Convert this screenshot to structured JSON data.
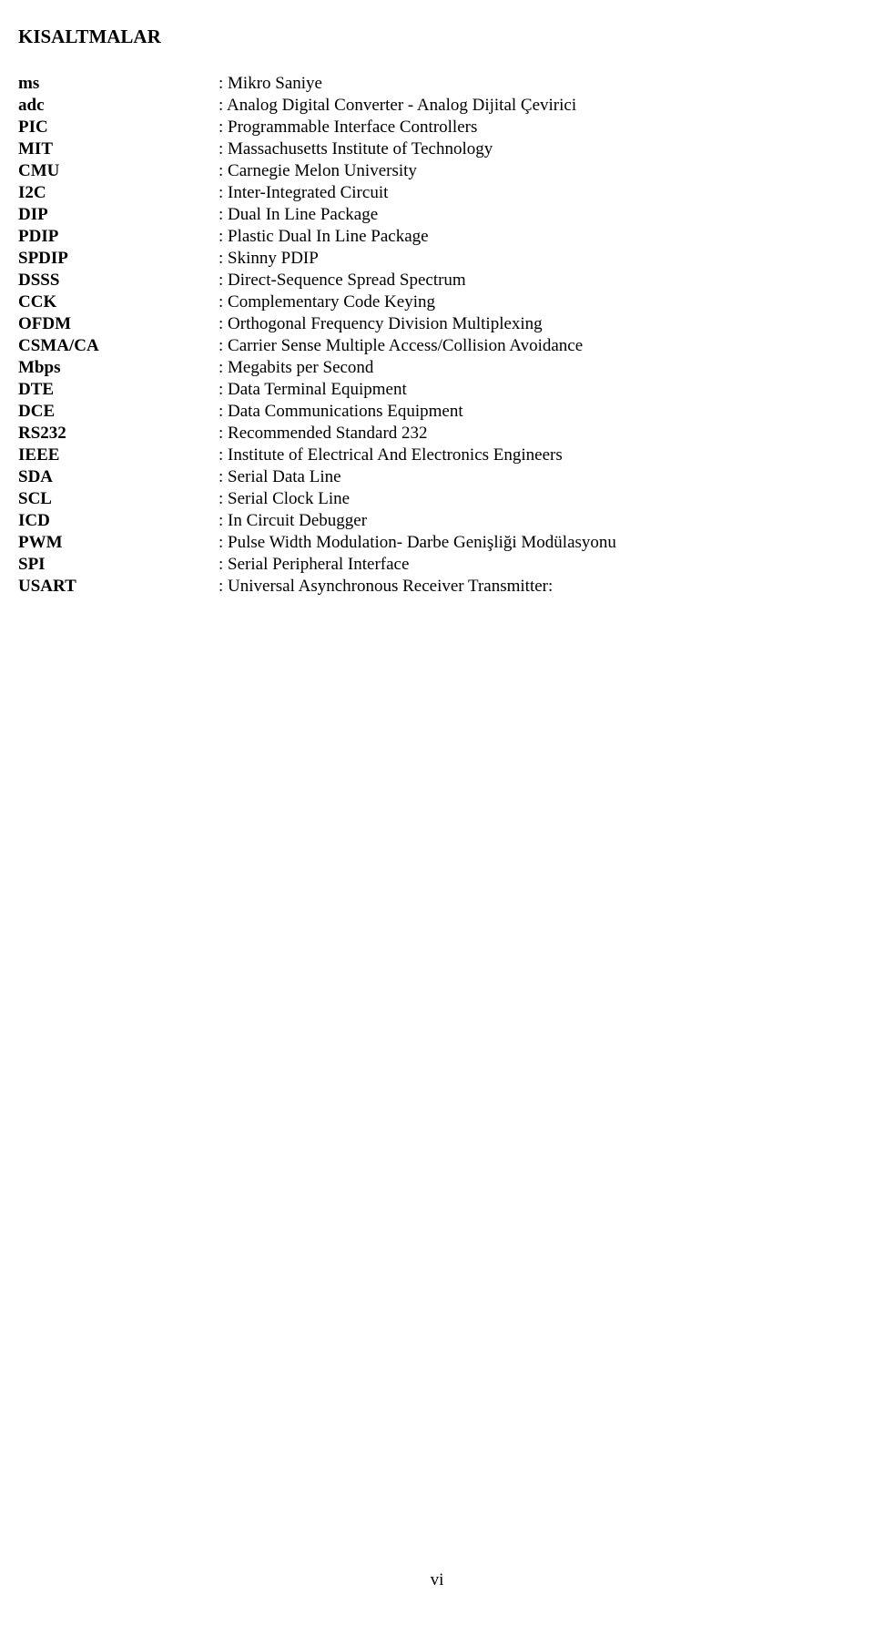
{
  "title": "KISALTMALAR",
  "page_number": "vi",
  "colors": {
    "text": "#000000",
    "background": "#ffffff"
  },
  "typography": {
    "font_family": "Times New Roman",
    "title_fontsize": 21,
    "body_fontsize": 19,
    "title_weight": "bold",
    "key_weight": "bold"
  },
  "abbreviations": [
    {
      "key": "ms",
      "value": ": Mikro Saniye"
    },
    {
      "key": "adc",
      "value": ": Analog Digital Converter - Analog Dijital Çevirici"
    },
    {
      "key": "PIC",
      "value": ": Programmable Interface Controllers"
    },
    {
      "key": "MIT",
      "value": ": Massachusetts Institute of Technology"
    },
    {
      "key": "CMU",
      "value": ": Carnegie Melon University"
    },
    {
      "key": "I2C",
      "value": ": Inter-Integrated Circuit"
    },
    {
      "key": "DIP",
      "value": ": Dual In Line Package"
    },
    {
      "key": "PDIP",
      "value": ": Plastic Dual In Line Package"
    },
    {
      "key": "SPDIP",
      "value": ": Skinny PDIP"
    },
    {
      "key": "DSSS",
      "value": ": Direct-Sequence Spread Spectrum"
    },
    {
      "key": "CCK",
      "value": ": Complementary Code Keying"
    },
    {
      "key": "OFDM",
      "value": ": Orthogonal Frequency Division Multiplexing"
    },
    {
      "key": "CSMA/CA",
      "value": ": Carrier Sense Multiple Access/Collision Avoidance"
    },
    {
      "key": "Mbps",
      "value": ": Megabits per Second"
    },
    {
      "key": "DTE",
      "value": ": Data Terminal Equipment"
    },
    {
      "key": "DCE",
      "value": ": Data Communications Equipment"
    },
    {
      "key": "RS232",
      "value": ": Recommended Standard 232"
    },
    {
      "key": "IEEE",
      "value": ": Institute of Electrical And Electronics Engineers"
    },
    {
      "key": "SDA",
      "value": ": Serial Data Line"
    },
    {
      "key": "SCL",
      "value": ": Serial Clock Line"
    },
    {
      "key": "ICD",
      "value": ": In Circuit Debugger"
    },
    {
      "key": "PWM",
      "value": ": Pulse Width Modulation- Darbe Genişliği Modülasyonu"
    },
    {
      "key": "SPI",
      "value": ": Serial Peripheral Interface"
    },
    {
      "key": "USART",
      "value": ": Universal Asynchronous Receiver Transmitter:"
    }
  ]
}
